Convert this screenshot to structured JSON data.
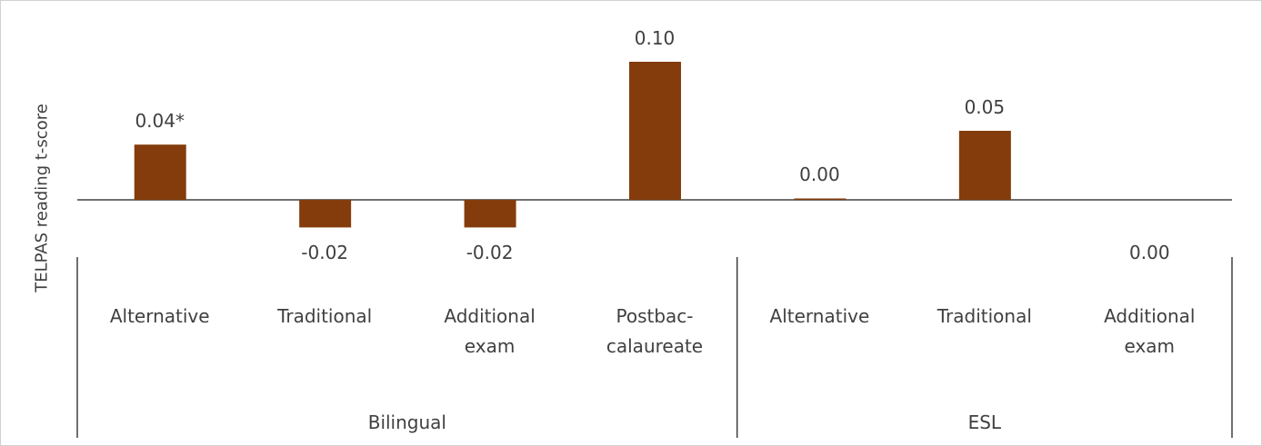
{
  "chart_data": {
    "type": "bar",
    "y_label": "TELPAS reading t-score",
    "color": "#843c0c",
    "ylim": [
      -0.03,
      0.125
    ],
    "groups": [
      {
        "name": "Bilingual",
        "categories": [
          "Alternative",
          "Traditional",
          "Additional exam",
          "Postbac-calaureate"
        ],
        "values": [
          0.04,
          -0.02,
          -0.02,
          0.1
        ],
        "value_labels": [
          "0.04*",
          "-0.02",
          "-0.02",
          "0.10"
        ]
      },
      {
        "name": "ESL",
        "categories": [
          "Alternative",
          "Traditional",
          "Additional exam"
        ],
        "values": [
          0.001,
          0.05,
          0
        ],
        "value_labels": [
          "0.00",
          "0.05",
          "0.00"
        ]
      }
    ]
  }
}
